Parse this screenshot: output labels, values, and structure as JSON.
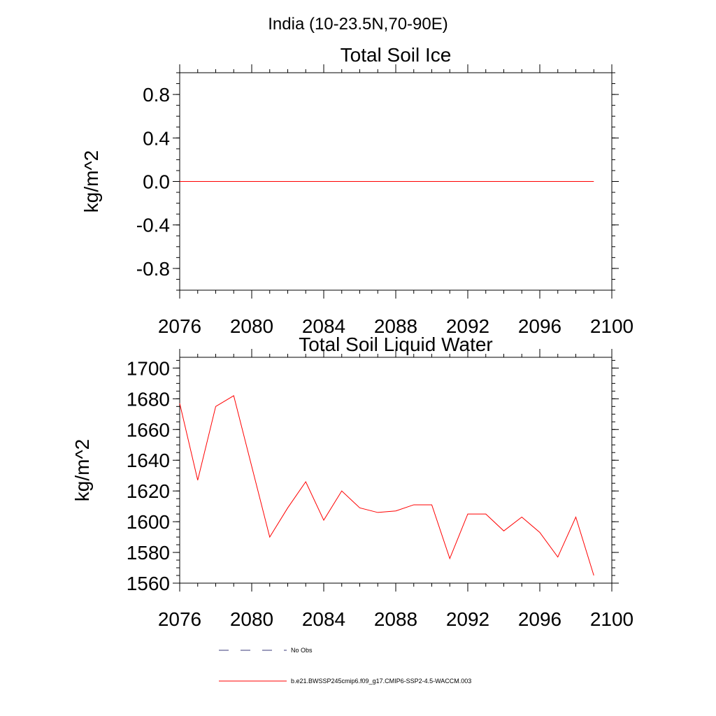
{
  "suptitle": "India (10-23.5N,70-90E)",
  "colors": {
    "series": "#ff0000",
    "no_obs": "#3a3a7a",
    "axis": "#000000"
  },
  "chart_data": [
    {
      "type": "line",
      "title": "Total Soil Ice",
      "xlabel": "",
      "ylabel": "kg/m^2",
      "xlim": [
        2076,
        2100
      ],
      "ylim": [
        -1.0,
        1.0
      ],
      "xticks": [
        2076,
        2080,
        2084,
        2088,
        2092,
        2096,
        2100
      ],
      "xtick_labels": [
        "2076",
        "2080",
        "2084",
        "2088",
        "2092",
        "2096",
        "2100"
      ],
      "yticks": [
        -0.8,
        -0.4,
        0.0,
        0.4,
        0.8
      ],
      "ytick_labels": [
        "-0.8",
        "-0.4",
        "0.0",
        "0.4",
        "0.8"
      ],
      "yminor_step": 0.1,
      "xminor_step": 1,
      "series": [
        {
          "name": "b.e21.BWSSP245cmip6.f09_g17.CMIP6-SSP2-4.5-WACCM.003",
          "x": [
            2076,
            2077,
            2078,
            2079,
            2080,
            2081,
            2082,
            2083,
            2084,
            2085,
            2086,
            2087,
            2088,
            2089,
            2090,
            2091,
            2092,
            2093,
            2094,
            2095,
            2096,
            2097,
            2098,
            2099
          ],
          "values": [
            0,
            0,
            0,
            0,
            0,
            0,
            0,
            0,
            0,
            0,
            0,
            0,
            0,
            0,
            0,
            0,
            0,
            0,
            0,
            0,
            0,
            0,
            0,
            0
          ]
        }
      ]
    },
    {
      "type": "line",
      "title": "Total Soil Liquid Water",
      "xlabel": "",
      "ylabel": "kg/m^2",
      "xlim": [
        2076,
        2100
      ],
      "ylim": [
        1560,
        1707
      ],
      "xticks": [
        2076,
        2080,
        2084,
        2088,
        2092,
        2096,
        2100
      ],
      "xtick_labels": [
        "2076",
        "2080",
        "2084",
        "2088",
        "2092",
        "2096",
        "2100"
      ],
      "yticks": [
        1560,
        1580,
        1600,
        1620,
        1640,
        1660,
        1680,
        1700
      ],
      "ytick_labels": [
        "1560",
        "1580",
        "1600",
        "1620",
        "1640",
        "1660",
        "1680",
        "1700"
      ],
      "yminor_step": 5,
      "xminor_step": 1,
      "series": [
        {
          "name": "b.e21.BWSSP245cmip6.f09_g17.CMIP6-SSP2-4.5-WACCM.003",
          "x": [
            2076,
            2077,
            2078,
            2079,
            2080,
            2081,
            2082,
            2083,
            2084,
            2085,
            2086,
            2087,
            2088,
            2089,
            2090,
            2091,
            2092,
            2093,
            2094,
            2095,
            2096,
            2097,
            2098,
            2099
          ],
          "values": [
            1677,
            1627,
            1675,
            1682,
            1636,
            1590,
            1609,
            1626,
            1601,
            1620,
            1609,
            1606,
            1607,
            1611,
            1611,
            1576,
            1605,
            1605,
            1594,
            1603,
            1593,
            1577,
            1603,
            1565
          ]
        }
      ]
    }
  ],
  "legend": {
    "items": [
      {
        "label": "No Obs",
        "style": "dashed"
      },
      {
        "label": "b.e21.BWSSP245cmip6.f09_g17.CMIP6-SSP2-4.5-WACCM.003",
        "style": "solid"
      }
    ]
  }
}
